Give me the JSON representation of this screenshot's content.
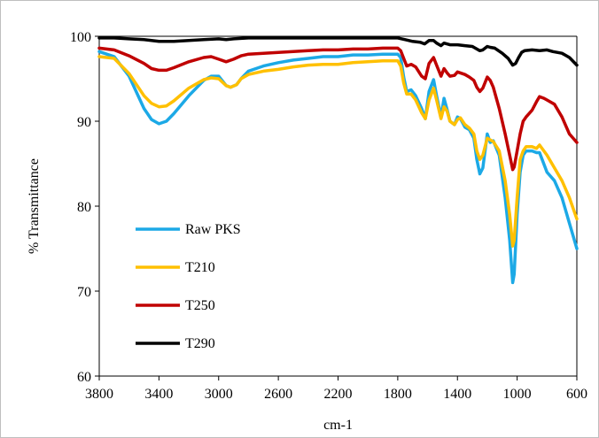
{
  "chart_data": {
    "type": "line",
    "xlabel": "cm-1",
    "ylabel": "% Transmittance",
    "xlim": [
      3800,
      600
    ],
    "ylim": [
      60,
      100
    ],
    "x_reversed": true,
    "x_ticks": [
      3800,
      3400,
      3000,
      2600,
      2200,
      1800,
      1400,
      1000,
      600
    ],
    "y_ticks": [
      60,
      70,
      80,
      90,
      100
    ],
    "grid": false,
    "legend_position": "left-lower",
    "series": [
      {
        "name": "Raw PKS",
        "color": "#1ca9e6",
        "points": [
          [
            3800,
            98.2
          ],
          [
            3700,
            97.6
          ],
          [
            3600,
            95.3
          ],
          [
            3500,
            91.5
          ],
          [
            3450,
            90.2
          ],
          [
            3400,
            89.7
          ],
          [
            3350,
            90
          ],
          [
            3300,
            90.9
          ],
          [
            3200,
            93
          ],
          [
            3100,
            94.8
          ],
          [
            3050,
            95.3
          ],
          [
            3000,
            95.3
          ],
          [
            2950,
            94.2
          ],
          [
            2920,
            94
          ],
          [
            2880,
            94.3
          ],
          [
            2850,
            95
          ],
          [
            2800,
            95.9
          ],
          [
            2700,
            96.5
          ],
          [
            2600,
            96.9
          ],
          [
            2500,
            97.2
          ],
          [
            2400,
            97.4
          ],
          [
            2300,
            97.6
          ],
          [
            2200,
            97.6
          ],
          [
            2100,
            97.8
          ],
          [
            2000,
            97.8
          ],
          [
            1900,
            97.9
          ],
          [
            1800,
            97.9
          ],
          [
            1780,
            97.5
          ],
          [
            1760,
            95.2
          ],
          [
            1740,
            93.5
          ],
          [
            1710,
            93.7
          ],
          [
            1680,
            93
          ],
          [
            1640,
            91.5
          ],
          [
            1615,
            90.3
          ],
          [
            1590,
            93.5
          ],
          [
            1560,
            94.9
          ],
          [
            1540,
            93
          ],
          [
            1510,
            90.5
          ],
          [
            1490,
            92.7
          ],
          [
            1470,
            91.4
          ],
          [
            1450,
            90
          ],
          [
            1420,
            89.6
          ],
          [
            1400,
            90.5
          ],
          [
            1380,
            90.3
          ],
          [
            1350,
            89.3
          ],
          [
            1320,
            89
          ],
          [
            1290,
            88
          ],
          [
            1270,
            85.5
          ],
          [
            1250,
            83.8
          ],
          [
            1230,
            84.5
          ],
          [
            1200,
            88.5
          ],
          [
            1180,
            87.5
          ],
          [
            1160,
            87.7
          ],
          [
            1120,
            86
          ],
          [
            1080,
            81
          ],
          [
            1050,
            76
          ],
          [
            1030,
            71
          ],
          [
            1020,
            72
          ],
          [
            1000,
            79
          ],
          [
            980,
            84
          ],
          [
            960,
            86
          ],
          [
            940,
            86.5
          ],
          [
            900,
            86.5
          ],
          [
            870,
            86.3
          ],
          [
            850,
            86.3
          ],
          [
            800,
            84
          ],
          [
            750,
            83
          ],
          [
            700,
            81
          ],
          [
            650,
            78
          ],
          [
            600,
            75
          ]
        ]
      },
      {
        "name": "T210",
        "color": "#ffc000",
        "points": [
          [
            3800,
            97.6
          ],
          [
            3700,
            97.4
          ],
          [
            3600,
            95.6
          ],
          [
            3500,
            93
          ],
          [
            3450,
            92.1
          ],
          [
            3400,
            91.7
          ],
          [
            3350,
            91.8
          ],
          [
            3300,
            92.4
          ],
          [
            3200,
            93.9
          ],
          [
            3100,
            94.9
          ],
          [
            3050,
            95.1
          ],
          [
            3000,
            95
          ],
          [
            2950,
            94.2
          ],
          [
            2920,
            94
          ],
          [
            2880,
            94.3
          ],
          [
            2850,
            95
          ],
          [
            2800,
            95.5
          ],
          [
            2700,
            95.9
          ],
          [
            2600,
            96.1
          ],
          [
            2500,
            96.4
          ],
          [
            2400,
            96.6
          ],
          [
            2300,
            96.7
          ],
          [
            2200,
            96.7
          ],
          [
            2100,
            96.9
          ],
          [
            2000,
            97
          ],
          [
            1900,
            97.1
          ],
          [
            1800,
            97.1
          ],
          [
            1780,
            96.5
          ],
          [
            1760,
            94.5
          ],
          [
            1740,
            93.2
          ],
          [
            1710,
            93.2
          ],
          [
            1680,
            92.5
          ],
          [
            1640,
            91
          ],
          [
            1615,
            90.3
          ],
          [
            1590,
            92.5
          ],
          [
            1560,
            93.9
          ],
          [
            1540,
            92.5
          ],
          [
            1510,
            90.3
          ],
          [
            1490,
            91.7
          ],
          [
            1470,
            91.2
          ],
          [
            1450,
            90
          ],
          [
            1420,
            89.6
          ],
          [
            1400,
            90.2
          ],
          [
            1380,
            90.4
          ],
          [
            1350,
            89.6
          ],
          [
            1320,
            89.2
          ],
          [
            1290,
            88.5
          ],
          [
            1270,
            86.5
          ],
          [
            1250,
            85.5
          ],
          [
            1230,
            86
          ],
          [
            1200,
            88
          ],
          [
            1180,
            87.8
          ],
          [
            1160,
            87.6
          ],
          [
            1120,
            86.5
          ],
          [
            1080,
            83
          ],
          [
            1050,
            79
          ],
          [
            1030,
            75.3
          ],
          [
            1020,
            76
          ],
          [
            1000,
            81
          ],
          [
            980,
            85.5
          ],
          [
            960,
            86.5
          ],
          [
            940,
            87
          ],
          [
            900,
            87
          ],
          [
            870,
            86.8
          ],
          [
            850,
            87.2
          ],
          [
            800,
            86
          ],
          [
            750,
            84.5
          ],
          [
            700,
            83
          ],
          [
            650,
            81
          ],
          [
            600,
            78.5
          ]
        ]
      },
      {
        "name": "T250",
        "color": "#c00000",
        "points": [
          [
            3800,
            98.6
          ],
          [
            3700,
            98.4
          ],
          [
            3600,
            97.7
          ],
          [
            3500,
            96.8
          ],
          [
            3450,
            96.2
          ],
          [
            3400,
            96
          ],
          [
            3350,
            96
          ],
          [
            3300,
            96.3
          ],
          [
            3200,
            97
          ],
          [
            3100,
            97.5
          ],
          [
            3050,
            97.6
          ],
          [
            3000,
            97.3
          ],
          [
            2950,
            97
          ],
          [
            2900,
            97.3
          ],
          [
            2850,
            97.7
          ],
          [
            2800,
            97.9
          ],
          [
            2700,
            98
          ],
          [
            2600,
            98.1
          ],
          [
            2500,
            98.2
          ],
          [
            2400,
            98.3
          ],
          [
            2300,
            98.4
          ],
          [
            2200,
            98.4
          ],
          [
            2100,
            98.5
          ],
          [
            2000,
            98.5
          ],
          [
            1900,
            98.6
          ],
          [
            1800,
            98.6
          ],
          [
            1780,
            98.3
          ],
          [
            1760,
            97.4
          ],
          [
            1740,
            96.5
          ],
          [
            1710,
            96.7
          ],
          [
            1680,
            96.4
          ],
          [
            1640,
            95.3
          ],
          [
            1615,
            95
          ],
          [
            1590,
            96.8
          ],
          [
            1560,
            97.5
          ],
          [
            1540,
            96.6
          ],
          [
            1510,
            95.3
          ],
          [
            1490,
            96.2
          ],
          [
            1470,
            95.7
          ],
          [
            1450,
            95.3
          ],
          [
            1420,
            95.4
          ],
          [
            1400,
            95.8
          ],
          [
            1350,
            95.5
          ],
          [
            1320,
            95.2
          ],
          [
            1290,
            94.8
          ],
          [
            1270,
            94
          ],
          [
            1250,
            93.5
          ],
          [
            1230,
            93.9
          ],
          [
            1200,
            95.2
          ],
          [
            1180,
            94.8
          ],
          [
            1160,
            94
          ],
          [
            1120,
            91.5
          ],
          [
            1080,
            88.5
          ],
          [
            1050,
            86
          ],
          [
            1030,
            84.3
          ],
          [
            1020,
            84.6
          ],
          [
            1000,
            86.5
          ],
          [
            980,
            88.5
          ],
          [
            960,
            90
          ],
          [
            940,
            90.5
          ],
          [
            900,
            91.3
          ],
          [
            870,
            92.3
          ],
          [
            850,
            92.9
          ],
          [
            820,
            92.7
          ],
          [
            800,
            92.5
          ],
          [
            750,
            92
          ],
          [
            700,
            90.5
          ],
          [
            650,
            88.5
          ],
          [
            600,
            87.5
          ]
        ]
      },
      {
        "name": "T290",
        "color": "#000000",
        "points": [
          [
            3800,
            99.8
          ],
          [
            3700,
            99.8
          ],
          [
            3600,
            99.7
          ],
          [
            3500,
            99.6
          ],
          [
            3400,
            99.4
          ],
          [
            3300,
            99.4
          ],
          [
            3200,
            99.5
          ],
          [
            3100,
            99.6
          ],
          [
            3000,
            99.7
          ],
          [
            2950,
            99.6
          ],
          [
            2900,
            99.7
          ],
          [
            2800,
            99.8
          ],
          [
            2600,
            99.8
          ],
          [
            2400,
            99.8
          ],
          [
            2200,
            99.8
          ],
          [
            2000,
            99.8
          ],
          [
            1800,
            99.8
          ],
          [
            1750,
            99.6
          ],
          [
            1700,
            99.4
          ],
          [
            1650,
            99.3
          ],
          [
            1620,
            99.1
          ],
          [
            1590,
            99.5
          ],
          [
            1560,
            99.5
          ],
          [
            1540,
            99.2
          ],
          [
            1510,
            98.9
          ],
          [
            1490,
            99.2
          ],
          [
            1450,
            99
          ],
          [
            1400,
            99
          ],
          [
            1350,
            98.9
          ],
          [
            1300,
            98.8
          ],
          [
            1270,
            98.5
          ],
          [
            1250,
            98.3
          ],
          [
            1230,
            98.4
          ],
          [
            1200,
            98.8
          ],
          [
            1180,
            98.7
          ],
          [
            1150,
            98.6
          ],
          [
            1100,
            98
          ],
          [
            1060,
            97.4
          ],
          [
            1030,
            96.6
          ],
          [
            1010,
            96.8
          ],
          [
            990,
            97.5
          ],
          [
            970,
            98.1
          ],
          [
            950,
            98.3
          ],
          [
            900,
            98.4
          ],
          [
            850,
            98.3
          ],
          [
            800,
            98.4
          ],
          [
            760,
            98.2
          ],
          [
            700,
            98
          ],
          [
            650,
            97.5
          ],
          [
            600,
            96.6
          ]
        ]
      }
    ]
  }
}
